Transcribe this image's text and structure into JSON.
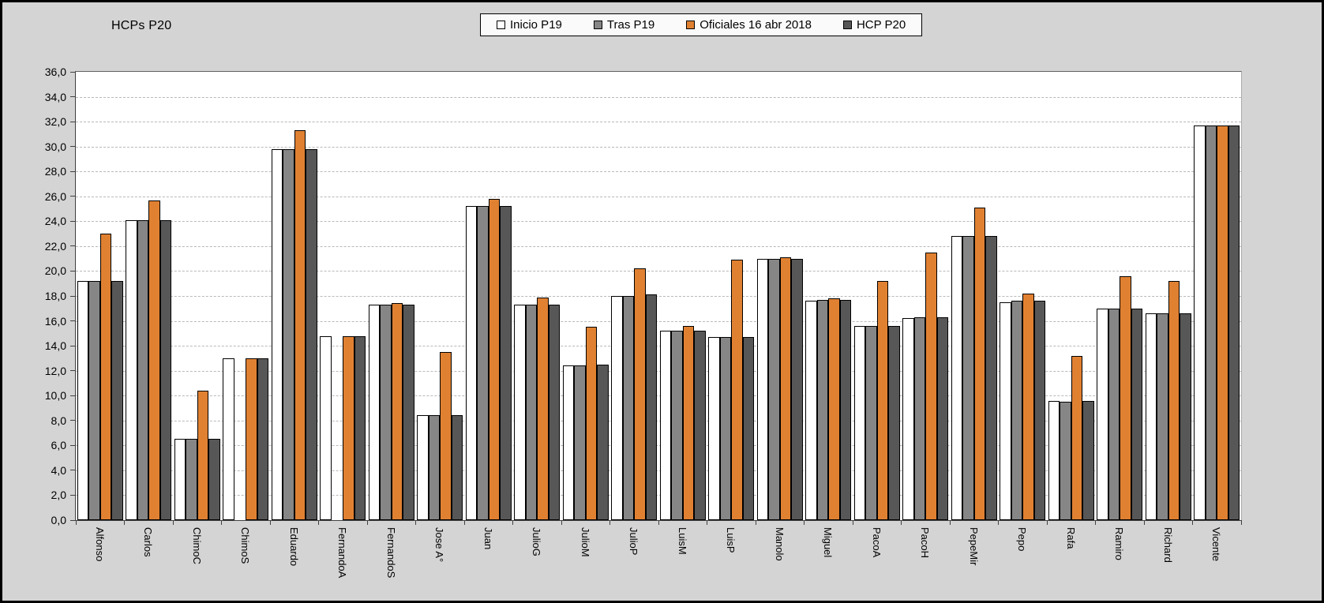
{
  "title": "HCPs P20",
  "colors": {
    "page_background": "#d4d4d4",
    "plot_background": "#ffffff",
    "gridline": "#b8b8b8",
    "axis": "#404040",
    "bar_outline": "#000000"
  },
  "legend": {
    "position": "top-center",
    "background": "#fafafa",
    "border": "#000000"
  },
  "chart_data": {
    "type": "bar",
    "title": "HCPs P20",
    "xlabel": "",
    "ylabel": "",
    "ylim": [
      0,
      36
    ],
    "y_step": 2,
    "grid": true,
    "legend_position": "top",
    "y_tick_labels": [
      "0,0",
      "2,0",
      "4,0",
      "6,0",
      "8,0",
      "10,0",
      "12,0",
      "14,0",
      "16,0",
      "18,0",
      "20,0",
      "22,0",
      "24,0",
      "26,0",
      "28,0",
      "30,0",
      "32,0",
      "34,0",
      "36,0"
    ],
    "categories": [
      "Alfonso",
      "Carlos",
      "ChimoC",
      "ChimoS",
      "Eduardo",
      "FernandoA",
      "FernandoS",
      "Jose A°",
      "Juan",
      "JulioG",
      "JulioM",
      "JulioP",
      "LuisM",
      "LuisP",
      "Manolo",
      "Miguel",
      "PacoA",
      "PacoH",
      "PepeMir",
      "Pepo",
      "Rafa",
      "Ramiro",
      "Richard",
      "Vicente"
    ],
    "series": [
      {
        "name": "Inicio P19",
        "color": "#ffffff",
        "values": [
          19.2,
          24.1,
          6.5,
          13.0,
          29.8,
          14.8,
          17.3,
          8.4,
          25.2,
          17.3,
          12.4,
          18.0,
          15.2,
          14.7,
          21.0,
          17.6,
          15.6,
          16.2,
          22.8,
          17.5,
          9.6,
          17.0,
          16.6,
          31.7
        ]
      },
      {
        "name": "Tras P19",
        "color": "#868686",
        "values": [
          19.2,
          24.1,
          6.5,
          null,
          29.8,
          null,
          17.3,
          8.4,
          25.2,
          17.3,
          12.4,
          18.0,
          15.2,
          14.7,
          21.0,
          17.7,
          15.6,
          16.3,
          22.8,
          17.6,
          9.5,
          17.0,
          16.6,
          31.7
        ]
      },
      {
        "name": "Oficiales 16 abr 2018",
        "color": "#e08132",
        "values": [
          23.0,
          25.7,
          10.4,
          13.0,
          31.3,
          14.8,
          17.4,
          13.5,
          25.8,
          17.9,
          15.5,
          20.2,
          15.6,
          20.9,
          21.1,
          17.8,
          19.2,
          21.5,
          25.1,
          18.2,
          13.2,
          19.6,
          19.2,
          31.7
        ]
      },
      {
        "name": "HCP P20",
        "color": "#575757",
        "values": [
          19.2,
          24.1,
          6.5,
          13.0,
          29.8,
          14.8,
          17.3,
          8.4,
          25.2,
          17.3,
          12.5,
          18.1,
          15.2,
          14.7,
          21.0,
          17.7,
          15.6,
          16.3,
          22.8,
          17.6,
          9.6,
          17.0,
          16.6,
          31.7
        ]
      }
    ]
  }
}
